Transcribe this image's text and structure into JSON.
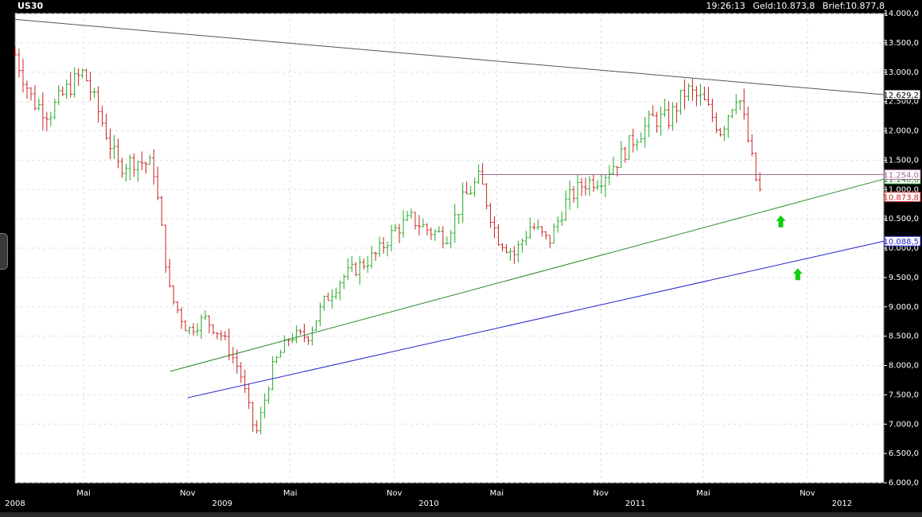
{
  "header": {
    "symbol": "US30",
    "time": "19:26:13",
    "geld": "Geld:10.873,8",
    "brief": "Brief:10.877,8"
  },
  "colors": {
    "background": "#000000",
    "plot": "#ffffff",
    "up_bar": "#22aa22",
    "down_bar": "#cc2222",
    "resistance_line": "#555555",
    "support_line": "#2a8a2a",
    "lower_support_line": "#2222cc",
    "horizontal_line": "#9a6a8a",
    "arrow": "#11cc11"
  },
  "chart_data": {
    "type": "ohlc",
    "title": "US30",
    "x_ticks": [
      {
        "label": "Mai",
        "date": "2008-05"
      },
      {
        "label": "Nov",
        "date": "2008-11"
      },
      {
        "label": "Mai",
        "date": "2009-05"
      },
      {
        "label": "Nov",
        "date": "2009-11"
      },
      {
        "label": "Mai",
        "date": "2010-05"
      },
      {
        "label": "Nov",
        "date": "2010-11"
      },
      {
        "label": "Mai",
        "date": "2011-05"
      },
      {
        "label": "Nov",
        "date": "2011-11"
      }
    ],
    "year_labels": [
      {
        "label": "2008",
        "date": "2008-01"
      },
      {
        "label": "2009",
        "date": "2009-01"
      },
      {
        "label": "2010",
        "date": "2010-01"
      },
      {
        "label": "2011",
        "date": "2011-01"
      },
      {
        "label": "2012",
        "date": "2012-01"
      }
    ],
    "y_ticks": [
      "6.000,0",
      "6.500,0",
      "7.000,0",
      "7.500,0",
      "8.000,0",
      "8.500,0",
      "9.000,0",
      "9.500,0",
      "10.000,0",
      "10.500,0",
      "11.000,0",
      "11.500,0",
      "12.000,0",
      "12.500,0",
      "13.000,0",
      "13.500,0",
      "14.000,0"
    ],
    "ylim": [
      6000,
      14000
    ],
    "grid": true,
    "price_path": [
      [
        "2008-01",
        13300
      ],
      [
        "2008-02",
        12500
      ],
      [
        "2008-03",
        12300
      ],
      [
        "2008-04",
        12700
      ],
      [
        "2008-05",
        13000
      ],
      [
        "2008-06",
        12200
      ],
      [
        "2008-07",
        11400
      ],
      [
        "2008-08",
        11500
      ],
      [
        "2008-09",
        11400
      ],
      [
        "2008-10",
        9200
      ],
      [
        "2008-11",
        8600
      ],
      [
        "2008-12",
        8800
      ],
      [
        "2009-01",
        8500
      ],
      [
        "2009-02",
        7900
      ],
      [
        "2009-03",
        6800
      ],
      [
        "2009-04",
        8000
      ],
      [
        "2009-05",
        8500
      ],
      [
        "2009-06",
        8500
      ],
      [
        "2009-07",
        9100
      ],
      [
        "2009-08",
        9500
      ],
      [
        "2009-09",
        9700
      ],
      [
        "2009-10",
        9900
      ],
      [
        "2009-11",
        10300
      ],
      [
        "2009-12",
        10500
      ],
      [
        "2010-01",
        10300
      ],
      [
        "2010-02",
        10200
      ],
      [
        "2010-03",
        10800
      ],
      [
        "2010-04",
        11200
      ],
      [
        "2010-05",
        10200
      ],
      [
        "2010-06",
        9900
      ],
      [
        "2010-07",
        10400
      ],
      [
        "2010-08",
        10100
      ],
      [
        "2010-09",
        10800
      ],
      [
        "2010-10",
        11100
      ],
      [
        "2010-11",
        11200
      ],
      [
        "2010-12",
        11500
      ],
      [
        "2011-01",
        11900
      ],
      [
        "2011-02",
        12200
      ],
      [
        "2011-03",
        12200
      ],
      [
        "2011-04",
        12700
      ],
      [
        "2011-05",
        12500
      ],
      [
        "2011-06",
        12000
      ],
      [
        "2011-07",
        12700
      ],
      [
        "2011-08",
        11200
      ],
      [
        "2011-08-12",
        10874
      ]
    ],
    "lines": [
      {
        "name": "resistance",
        "from": [
          "2008-01",
          13900
        ],
        "to": [
          "2012-03",
          12629.2
        ],
        "label": "12.629,2"
      },
      {
        "name": "support",
        "from": [
          "2008-10",
          7900
        ],
        "to": [
          "2012-03",
          11140.6
        ],
        "label": "11.140,6"
      },
      {
        "name": "lower-support",
        "from": [
          "2008-11",
          7450
        ],
        "to": [
          "2012-03",
          10088.5
        ],
        "label": "10.088,5"
      },
      {
        "name": "horizontal",
        "from": [
          "2010-04",
          11254.0
        ],
        "to": [
          "2012-03",
          11254.0
        ],
        "label": "11.254,0"
      }
    ],
    "last_price": {
      "value": 10873.8,
      "label": "10.873,8"
    },
    "arrows": [
      {
        "direction": "up",
        "date": "2011-09-15",
        "value": 10450
      },
      {
        "direction": "up",
        "date": "2011-10-15",
        "value": 9550
      }
    ]
  }
}
